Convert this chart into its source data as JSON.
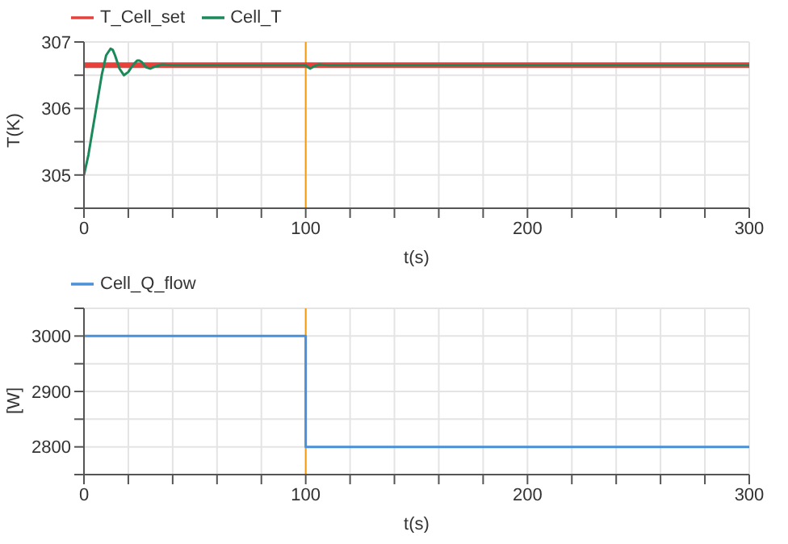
{
  "chart_data": [
    {
      "type": "line",
      "xlabel": "t(s)",
      "ylabel": "T(K)",
      "xlim": [
        0,
        300
      ],
      "ylim": [
        304.5,
        307
      ],
      "xticks": [
        0,
        {
          "value": 20,
          "label": null
        },
        {
          "value": 40,
          "label": null
        },
        {
          "value": 60,
          "label": null
        },
        {
          "value": 80,
          "label": null
        },
        100,
        {
          "value": 120,
          "label": null
        },
        {
          "value": 140,
          "label": null
        },
        {
          "value": 160,
          "label": null
        },
        {
          "value": 180,
          "label": null
        },
        200,
        {
          "value": 220,
          "label": null
        },
        {
          "value": 240,
          "label": null
        },
        {
          "value": 260,
          "label": null
        },
        {
          "value": 280,
          "label": null
        },
        300
      ],
      "yticks": [
        {
          "value": 304.5,
          "label": null
        },
        305,
        {
          "value": 305.5,
          "label": null
        },
        306,
        {
          "value": 306.5,
          "label": null
        },
        307
      ],
      "grid": true,
      "legend": "top left",
      "ref_lines": [
        {
          "axis": "x",
          "value": 100,
          "color": "#f39c12"
        }
      ],
      "series": [
        {
          "name": "T_Cell_set",
          "color": "#e8413c",
          "x": [
            0,
            300
          ],
          "values": [
            306.65,
            306.65
          ]
        },
        {
          "name": "Cell_T",
          "color": "#1a8a5a",
          "x": [
            0,
            2,
            4,
            6,
            8,
            10,
            12,
            13,
            14,
            16,
            18,
            20,
            22,
            24,
            25,
            26,
            28,
            30,
            32,
            35,
            40,
            50,
            60,
            100,
            101,
            102,
            104,
            106,
            110,
            120,
            300
          ],
          "values": [
            305,
            305.3,
            305.7,
            306.1,
            306.5,
            306.8,
            306.9,
            306.88,
            306.8,
            306.6,
            306.5,
            306.55,
            306.65,
            306.72,
            306.72,
            306.7,
            306.62,
            306.6,
            306.63,
            306.66,
            306.65,
            306.65,
            306.65,
            306.65,
            306.62,
            306.6,
            306.64,
            306.66,
            306.65,
            306.65,
            306.65
          ]
        }
      ]
    },
    {
      "type": "step",
      "xlabel": "t(s)",
      "ylabel": "[W]",
      "xlim": [
        0,
        300
      ],
      "ylim": [
        2750,
        3050
      ],
      "xticks": [
        0,
        {
          "value": 20,
          "label": null
        },
        {
          "value": 40,
          "label": null
        },
        {
          "value": 60,
          "label": null
        },
        {
          "value": 80,
          "label": null
        },
        100,
        {
          "value": 120,
          "label": null
        },
        {
          "value": 140,
          "label": null
        },
        {
          "value": 160,
          "label": null
        },
        {
          "value": 180,
          "label": null
        },
        200,
        {
          "value": 220,
          "label": null
        },
        {
          "value": 240,
          "label": null
        },
        {
          "value": 260,
          "label": null
        },
        {
          "value": 280,
          "label": null
        },
        300
      ],
      "yticks": [
        {
          "value": 2750,
          "label": null
        },
        2800,
        {
          "value": 2850,
          "label": null
        },
        2900,
        {
          "value": 2950,
          "label": null
        },
        3000,
        {
          "value": 3050,
          "label": null
        }
      ],
      "grid": true,
      "legend": "top left",
      "ref_lines": [
        {
          "axis": "x",
          "value": 100,
          "color": "#f39c12"
        }
      ],
      "series": [
        {
          "name": "Cell_Q_flow",
          "color": "#4a90d9",
          "x": [
            0,
            100,
            300
          ],
          "values": [
            3000,
            2800,
            2800
          ]
        }
      ]
    }
  ]
}
